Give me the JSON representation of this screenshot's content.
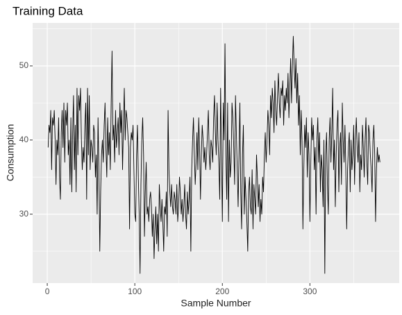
{
  "chart_data": {
    "type": "line",
    "title": "Training Data",
    "x_label": "Sample Number",
    "y_label": "Consumption",
    "color": "#000000",
    "grid": true,
    "background": "#ebebeb",
    "xlim": [
      -16.7,
      402
    ],
    "ylim": [
      20.7,
      55.8
    ],
    "xticks": [
      0,
      100,
      200,
      300
    ],
    "yticks": [
      30,
      40,
      50
    ],
    "minor_xticks": [
      50,
      150,
      250,
      350
    ],
    "minor_yticks": [
      25,
      35,
      45,
      55
    ],
    "values": [
      39,
      42,
      41,
      44,
      36,
      43,
      42,
      44,
      40,
      34,
      40,
      38,
      43,
      35,
      32,
      41,
      44,
      39,
      45,
      37,
      44,
      42,
      45,
      38,
      40,
      34,
      43,
      33,
      41,
      46,
      36,
      42,
      33,
      47,
      38,
      46,
      44,
      47,
      40,
      36,
      39,
      37,
      42,
      45,
      32,
      47,
      38,
      46,
      36,
      40,
      39,
      37,
      42,
      41,
      35,
      38,
      30,
      43,
      36,
      25,
      33,
      38,
      40,
      37,
      42,
      45,
      39,
      35,
      43,
      38,
      41,
      36,
      45,
      52,
      40,
      42,
      37,
      44,
      39,
      41,
      43,
      38,
      45,
      41,
      44,
      36,
      42,
      47,
      40,
      44,
      43,
      41,
      39,
      28,
      39,
      41,
      40,
      42,
      36,
      30,
      29,
      38,
      42,
      35,
      30,
      22,
      34,
      40,
      43,
      38,
      27,
      33,
      37,
      30,
      31,
      29,
      32,
      33,
      31,
      27,
      30,
      24,
      28,
      31,
      26,
      30,
      25,
      34,
      31,
      29,
      32,
      29,
      25,
      31,
      30,
      33,
      27,
      44,
      36,
      33,
      31,
      34,
      31,
      30,
      33,
      32,
      30,
      34,
      29,
      31,
      35,
      33,
      30,
      32,
      29,
      31,
      34,
      30,
      28,
      33,
      30,
      32,
      35,
      25,
      36,
      40,
      43,
      38,
      34,
      37,
      41,
      36,
      43,
      39,
      32,
      38,
      42,
      40,
      37,
      39,
      36,
      38,
      41,
      44,
      38,
      36,
      40,
      39,
      37,
      43,
      46,
      41,
      38,
      45,
      40,
      37,
      32,
      47,
      38,
      29,
      45,
      40,
      53,
      38,
      32,
      45,
      29,
      40,
      35,
      37,
      45,
      43,
      39,
      34,
      46,
      41,
      36,
      31,
      38,
      45,
      33,
      28,
      38,
      42,
      30,
      35,
      32,
      29,
      25,
      33,
      35,
      31,
      30,
      36,
      28,
      34,
      32,
      30,
      38,
      35,
      31,
      34,
      29,
      32,
      30,
      35,
      33,
      38,
      41,
      37,
      40,
      44,
      42,
      38,
      46,
      43,
      47,
      45,
      41,
      48,
      44,
      42,
      46,
      49,
      45,
      43,
      47,
      46,
      48,
      42,
      46,
      44,
      47,
      45,
      49,
      43,
      47,
      51,
      45,
      50,
      54,
      50,
      47,
      51,
      45,
      49,
      42,
      46,
      38,
      44,
      40,
      28,
      36,
      42,
      39,
      43,
      35,
      41,
      38,
      29,
      37,
      43,
      40,
      42,
      36,
      39,
      30,
      40,
      43,
      37,
      41,
      33,
      38,
      36,
      31,
      40,
      22,
      38,
      41,
      34,
      30,
      40,
      43,
      37,
      41,
      47,
      36,
      40,
      31,
      38,
      42,
      44,
      33,
      39,
      41,
      34,
      45,
      40,
      37,
      42,
      36,
      28,
      36,
      39,
      41,
      33,
      40,
      36,
      38,
      42,
      34,
      40,
      43,
      39,
      37,
      41,
      33,
      38,
      36,
      42,
      39,
      35,
      40,
      43,
      37,
      34,
      42,
      41,
      38,
      36,
      33,
      40,
      42,
      38,
      29,
      36,
      39,
      37,
      38,
      37
    ]
  }
}
